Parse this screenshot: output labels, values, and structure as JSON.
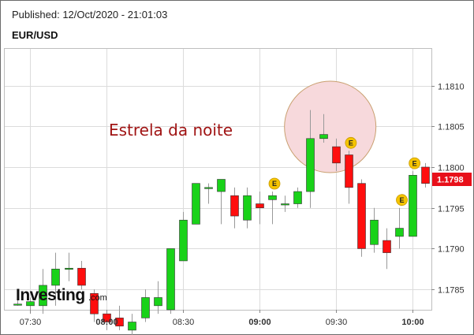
{
  "header": {
    "published": "Published: 12/Oct/2020 - 21:01:03",
    "symbol": "EUR/USD"
  },
  "chart_data": {
    "type": "candlestick",
    "title": "",
    "annotation": "Estrela da noite",
    "brand": {
      "name": "Investing",
      "suffix": ".com"
    },
    "ylim": [
      1.17825,
      1.18145
    ],
    "y_ticks": [
      "1.1785",
      "1.1790",
      "1.1795",
      "1.1800",
      "1.1805",
      "1.1810"
    ],
    "x_ticks": [
      {
        "label": "07:30",
        "index": 1,
        "major": false
      },
      {
        "label": "08:00",
        "index": 7,
        "major": true
      },
      {
        "label": "08:30",
        "index": 13,
        "major": false
      },
      {
        "label": "09:00",
        "index": 19,
        "major": true
      },
      {
        "label": "09:30",
        "index": 25,
        "major": false
      },
      {
        "label": "10:00",
        "index": 31,
        "major": true
      }
    ],
    "current_price": {
      "label": "1.1798",
      "value": 1.1798
    },
    "colors": {
      "up": "#19d219",
      "down": "#ff0e0e",
      "grid": "#dcdcdc",
      "tag": "#e8101a",
      "event": "#f5c400",
      "circle_fill": "#f7d9dc",
      "circle_stroke": "#c9a070",
      "annotation": "#a01414"
    },
    "event_marker_label": "E",
    "event_indices": [
      20,
      26,
      30,
      31
    ],
    "highlight_indices": [
      24,
      25
    ],
    "candles": [
      {
        "o": 1.17832,
        "h": 1.1784,
        "l": 1.1783,
        "c": 1.17832
      },
      {
        "o": 1.1783,
        "h": 1.1784,
        "l": 1.1782,
        "c": 1.17835
      },
      {
        "o": 1.1783,
        "h": 1.17875,
        "l": 1.1782,
        "c": 1.17855
      },
      {
        "o": 1.17855,
        "h": 1.17895,
        "l": 1.1783,
        "c": 1.17875
      },
      {
        "o": 1.17875,
        "h": 1.17895,
        "l": 1.1786,
        "c": 1.17876
      },
      {
        "o": 1.17876,
        "h": 1.17885,
        "l": 1.1785,
        "c": 1.17855
      },
      {
        "o": 1.17845,
        "h": 1.1785,
        "l": 1.1781,
        "c": 1.1782
      },
      {
        "o": 1.1782,
        "h": 1.17825,
        "l": 1.178,
        "c": 1.1781
      },
      {
        "o": 1.17815,
        "h": 1.1783,
        "l": 1.178,
        "c": 1.17805
      },
      {
        "o": 1.178,
        "h": 1.1782,
        "l": 1.1778,
        "c": 1.1781
      },
      {
        "o": 1.17815,
        "h": 1.1785,
        "l": 1.1781,
        "c": 1.1784
      },
      {
        "o": 1.1783,
        "h": 1.1786,
        "l": 1.1782,
        "c": 1.1784
      },
      {
        "o": 1.17825,
        "h": 1.179,
        "l": 1.1782,
        "c": 1.179
      },
      {
        "o": 1.17885,
        "h": 1.17945,
        "l": 1.17885,
        "c": 1.17935
      },
      {
        "o": 1.1793,
        "h": 1.1798,
        "l": 1.1793,
        "c": 1.1798
      },
      {
        "o": 1.17975,
        "h": 1.1798,
        "l": 1.17955,
        "c": 1.17975
      },
      {
        "o": 1.1797,
        "h": 1.17985,
        "l": 1.1793,
        "c": 1.17985
      },
      {
        "o": 1.17965,
        "h": 1.17975,
        "l": 1.17925,
        "c": 1.1794
      },
      {
        "o": 1.17935,
        "h": 1.17975,
        "l": 1.17925,
        "c": 1.17965
      },
      {
        "o": 1.17955,
        "h": 1.1797,
        "l": 1.1793,
        "c": 1.1795
      },
      {
        "o": 1.1796,
        "h": 1.1797,
        "l": 1.1793,
        "c": 1.17965
      },
      {
        "o": 1.17955,
        "h": 1.17965,
        "l": 1.17945,
        "c": 1.17955
      },
      {
        "o": 1.17955,
        "h": 1.17975,
        "l": 1.1795,
        "c": 1.1797
      },
      {
        "o": 1.1797,
        "h": 1.1807,
        "l": 1.1795,
        "c": 1.18035
      },
      {
        "o": 1.18035,
        "h": 1.18065,
        "l": 1.1803,
        "c": 1.1804
      },
      {
        "o": 1.18025,
        "h": 1.18035,
        "l": 1.17995,
        "c": 1.18005
      },
      {
        "o": 1.18015,
        "h": 1.1802,
        "l": 1.17955,
        "c": 1.17975
      },
      {
        "o": 1.1798,
        "h": 1.17985,
        "l": 1.1789,
        "c": 1.179
      },
      {
        "o": 1.17905,
        "h": 1.1795,
        "l": 1.17895,
        "c": 1.17935
      },
      {
        "o": 1.1791,
        "h": 1.17925,
        "l": 1.17875,
        "c": 1.17895
      },
      {
        "o": 1.17915,
        "h": 1.1795,
        "l": 1.179,
        "c": 1.17925
      },
      {
        "o": 1.17915,
        "h": 1.17995,
        "l": 1.17915,
        "c": 1.1799
      },
      {
        "o": 1.18,
        "h": 1.18005,
        "l": 1.17975,
        "c": 1.1798
      }
    ]
  }
}
